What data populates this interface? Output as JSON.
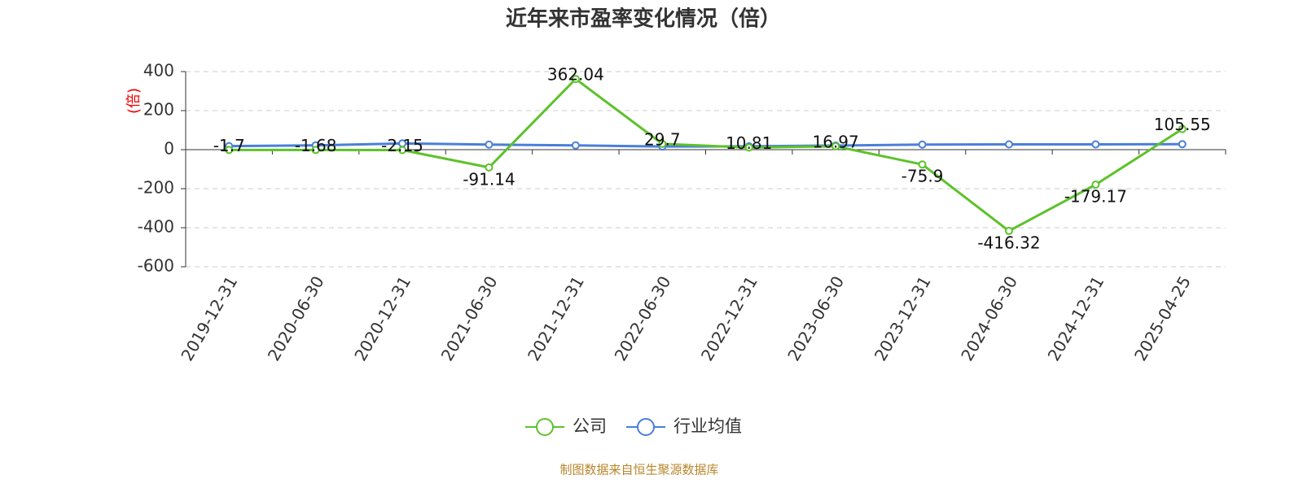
{
  "chart_data": {
    "type": "line",
    "title": "近年来市盈率变化情况（倍）",
    "y_label": "(倍)",
    "source": "制图数据来自恒生聚源数据库",
    "categories": [
      "2019-12-31",
      "2020-06-30",
      "2020-12-31",
      "2021-06-30",
      "2021-12-31",
      "2022-06-30",
      "2022-12-31",
      "2023-06-30",
      "2023-12-31",
      "2024-06-30",
      "2024-12-31",
      "2025-04-25"
    ],
    "series": [
      {
        "name": "公司",
        "color": "#5cc22a",
        "values": [
          -1.7,
          -1.68,
          -2.15,
          -91.14,
          362.04,
          29.7,
          10.81,
          16.97,
          -75.9,
          -416.32,
          -179.17,
          105.55
        ]
      },
      {
        "name": "行业均值",
        "color": "#4a7fd9",
        "values": [
          18,
          22,
          32,
          26,
          22,
          16,
          17,
          21,
          26,
          27,
          27,
          28
        ]
      }
    ],
    "ylim": [
      -600,
      400
    ],
    "yticks": [
      -600,
      -400,
      -200,
      0,
      200,
      400
    ],
    "grid": true
  }
}
